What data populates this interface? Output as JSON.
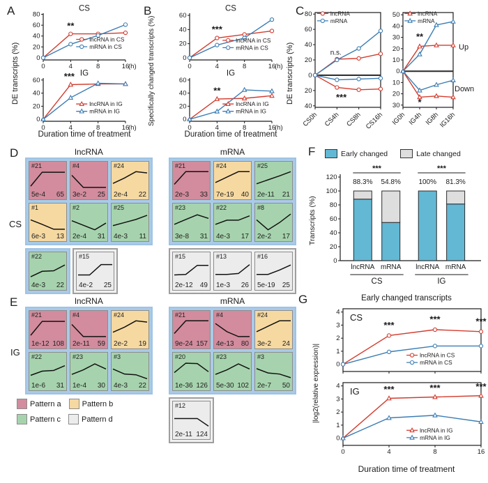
{
  "colors": {
    "red": "#d23b2e",
    "blue": "#3c7db3",
    "axis": "#1a1a1a",
    "early": "#63b8d4",
    "late": "#dedede",
    "pattern": {
      "a": "#d28c9d",
      "b": "#f6d9a1",
      "c": "#a6d3ad",
      "d": "#ececec"
    },
    "group_blue": "#a9cbe8",
    "group_gray": "#f0f0f0"
  },
  "panels": {
    "A": {
      "letter": "A",
      "ylabel": "DE transcripts (%)",
      "xlabel": "Duration time of treatment"
    },
    "B": {
      "letter": "B",
      "ylabel": "Specifically changed transcripts (%)",
      "xlabel": "Duration time of treatment"
    },
    "C": {
      "letter": "C",
      "ylabel": "DE transcripts (%)",
      "up": "Up",
      "down": "Down"
    },
    "D": {
      "letter": "D",
      "row_label": "CS",
      "headers": [
        "lncRNA",
        "mRNA"
      ],
      "lncRNA_main": [
        {
          "id": "#21",
          "p": "5e-4",
          "n": "65",
          "pattern": "a",
          "shape": [
            0.15,
            0.92,
            0.92,
            0.92
          ]
        },
        {
          "id": "#4",
          "p": "3e-2",
          "n": "25",
          "pattern": "a",
          "shape": [
            0.75,
            0.08,
            0.08,
            0.08
          ]
        },
        {
          "id": "#24",
          "p": "2e-4",
          "n": "22",
          "pattern": "b",
          "shape": [
            0.3,
            0.6,
            0.95,
            0.88
          ]
        },
        {
          "id": "#1",
          "p": "6e-3",
          "n": "13",
          "pattern": "b",
          "shape": [
            0.6,
            0.35,
            0.08,
            0.08
          ]
        },
        {
          "id": "#2",
          "p": "2e-4",
          "n": "31",
          "pattern": "c",
          "shape": [
            0.55,
            0.3,
            0.05,
            0.42
          ]
        },
        {
          "id": "#25",
          "p": "4e-3",
          "n": "11",
          "pattern": "c",
          "shape": [
            0.28,
            0.45,
            0.62,
            0.85
          ]
        }
      ],
      "lncRNA_extra_blue": [
        {
          "id": "#22",
          "p": "4e-3",
          "n": "22",
          "pattern": "c",
          "shape": [
            0.15,
            0.45,
            0.48,
            0.8
          ]
        }
      ],
      "lncRNA_extra_gray": [
        {
          "id": "#15",
          "p": "4e-2",
          "n": "25",
          "pattern": "d",
          "shape": [
            0.25,
            0.25,
            0.82,
            0.82
          ]
        }
      ],
      "mRNA_main": [
        {
          "id": "#21",
          "p": "2e-3",
          "n": "33",
          "pattern": "a",
          "shape": [
            0.25,
            0.95,
            0.95,
            0.95
          ]
        },
        {
          "id": "#24",
          "p": "7e-19",
          "n": "40",
          "pattern": "b",
          "shape": [
            0.35,
            0.65,
            0.95,
            0.95
          ]
        },
        {
          "id": "#25",
          "p": "2e-11",
          "n": "21",
          "pattern": "c",
          "shape": [
            0.28,
            0.5,
            0.72,
            0.95
          ]
        },
        {
          "id": "#23",
          "p": "3e-8",
          "n": "31",
          "pattern": "c",
          "shape": [
            0.35,
            0.62,
            0.88,
            0.68
          ]
        },
        {
          "id": "#22",
          "p": "4e-3",
          "n": "17",
          "pattern": "c",
          "shape": [
            0.35,
            0.58,
            0.58,
            0.82
          ]
        },
        {
          "id": "#8",
          "p": "2e-2",
          "n": "17",
          "pattern": "c",
          "shape": [
            0.6,
            0.05,
            0.45,
            0.92
          ]
        }
      ],
      "mRNA_extra_gray": [
        {
          "id": "#15",
          "p": "2e-12",
          "n": "49",
          "pattern": "d",
          "shape": [
            0.25,
            0.28,
            0.78,
            0.78
          ]
        },
        {
          "id": "#13",
          "p": "1e-3",
          "n": "26",
          "pattern": "d",
          "shape": [
            0.28,
            0.28,
            0.33,
            0.82
          ]
        },
        {
          "id": "#16",
          "p": "5e-19",
          "n": "25",
          "pattern": "d",
          "shape": [
            0.28,
            0.28,
            0.52,
            0.8
          ]
        }
      ]
    },
    "E": {
      "letter": "E",
      "row_label": "IG",
      "headers": [
        "lncRNA",
        "mRNA"
      ],
      "lncRNA_main": [
        {
          "id": "#21",
          "p": "1e-12",
          "n": "108",
          "pattern": "a",
          "shape": [
            0.15,
            0.92,
            0.92,
            0.92
          ]
        },
        {
          "id": "#4",
          "p": "2e-11",
          "n": "59",
          "pattern": "a",
          "shape": [
            0.75,
            0.08,
            0.08,
            0.08
          ]
        },
        {
          "id": "#24",
          "p": "2e-2",
          "n": "19",
          "pattern": "b",
          "shape": [
            0.32,
            0.6,
            0.95,
            0.88
          ]
        },
        {
          "id": "#22",
          "p": "1e-6",
          "n": "31",
          "pattern": "c",
          "shape": [
            0.25,
            0.48,
            0.52,
            0.78
          ]
        },
        {
          "id": "#23",
          "p": "1e-4",
          "n": "30",
          "pattern": "c",
          "shape": [
            0.3,
            0.55,
            0.88,
            0.6
          ]
        },
        {
          "id": "#3",
          "p": "4e-3",
          "n": "22",
          "pattern": "c",
          "shape": [
            0.6,
            0.32,
            0.28,
            0.06
          ]
        }
      ],
      "mRNA_main": [
        {
          "id": "#21",
          "p": "9e-24",
          "n": "157",
          "pattern": "a",
          "shape": [
            0.25,
            0.95,
            0.95,
            0.95
          ]
        },
        {
          "id": "#4",
          "p": "4e-13",
          "n": "80",
          "pattern": "a",
          "shape": [
            0.8,
            0.35,
            0.08,
            0.08
          ]
        },
        {
          "id": "#24",
          "p": "3e-2",
          "n": "24",
          "pattern": "b",
          "shape": [
            0.35,
            0.65,
            0.95,
            0.95
          ]
        },
        {
          "id": "#20",
          "p": "1e-36",
          "n": "126",
          "pattern": "c",
          "shape": [
            0.4,
            0.92,
            0.9,
            0.45
          ]
        },
        {
          "id": "#23",
          "p": "5e-30",
          "n": "102",
          "pattern": "c",
          "shape": [
            0.3,
            0.55,
            0.88,
            0.6
          ]
        },
        {
          "id": "#3",
          "p": "2e-7",
          "n": "50",
          "pattern": "c",
          "shape": [
            0.62,
            0.38,
            0.32,
            0.12
          ]
        }
      ],
      "mRNA_extra_gray": [
        {
          "id": "#12",
          "p": "2e-11",
          "n": "124",
          "pattern": "d",
          "shape": [
            0.56,
            0.56,
            0.56,
            0.14
          ]
        }
      ],
      "pattern_legend": [
        {
          "label": "Pattern a",
          "key": "a"
        },
        {
          "label": "Pattern b",
          "key": "b"
        },
        {
          "label": "Pattern c",
          "key": "c"
        },
        {
          "label": "Pattern d",
          "key": "d"
        }
      ]
    },
    "F": {
      "letter": "F",
      "ylabel": "Transcripts (%)",
      "legend": [
        {
          "label": "Early changed",
          "key": "early"
        },
        {
          "label": "Late changed",
          "key": "late"
        }
      ]
    },
    "G": {
      "letter": "G",
      "title": "Early changed transcripts",
      "ylabel": "|log2(relative expression)|",
      "xlabel": "Duration time of treatment"
    }
  },
  "chart_data": [
    {
      "id": "A-CS",
      "type": "line",
      "title": "CS",
      "marker": "circle",
      "x_labels": [
        "0",
        "4",
        "8",
        "16"
      ],
      "x_unit": "(h)",
      "ylim": [
        -4,
        82
      ],
      "yticks": [
        0,
        20,
        40,
        60,
        80
      ],
      "series": [
        {
          "name": "lncRNA in CS",
          "color": "#d23b2e",
          "values": [
            0,
            44,
            44,
            46
          ]
        },
        {
          "name": "mRNA in CS",
          "color": "#3c7db3",
          "values": [
            0,
            25,
            41,
            61
          ]
        }
      ],
      "annotations": [
        {
          "text": "**",
          "xi": 1,
          "y": 53
        }
      ],
      "legend": {
        "fx": 0.4,
        "fy": 0.56
      }
    },
    {
      "id": "A-IG",
      "type": "line",
      "title": "IG",
      "marker": "triangle",
      "x_labels": [
        "0",
        "4",
        "8",
        "16"
      ],
      "x_unit": "(h)",
      "ylim": [
        -3,
        63
      ],
      "yticks": [
        0,
        20,
        40,
        60
      ],
      "series": [
        {
          "name": "lncRNA in IG",
          "color": "#d23b2e",
          "values": [
            0,
            53,
            54,
            54
          ]
        },
        {
          "name": "mRNA in IG",
          "color": "#3c7db3",
          "values": [
            0,
            33,
            55,
            54
          ]
        }
      ],
      "annotations": [
        {
          "text": "***",
          "xi": 0.95,
          "y": 61
        }
      ],
      "legend": {
        "fx": 0.4,
        "fy": 0.6
      }
    },
    {
      "id": "B-CS",
      "type": "line",
      "title": "CS",
      "marker": "circle",
      "x_labels": [
        "0",
        "4",
        "8",
        "16"
      ],
      "x_unit": "(h)",
      "ylim": [
        -3,
        63
      ],
      "yticks": [
        0,
        20,
        40,
        60
      ],
      "series": [
        {
          "name": "lncRNA in CS",
          "color": "#d23b2e",
          "values": [
            0,
            28,
            33,
            38
          ]
        },
        {
          "name": "mRNA in CS",
          "color": "#3c7db3",
          "values": [
            0,
            18,
            28,
            54
          ]
        }
      ],
      "annotations": [
        {
          "text": "***",
          "xi": 1,
          "y": 36
        }
      ],
      "legend": {
        "fx": 0.4,
        "fy": 0.58
      }
    },
    {
      "id": "B-IG",
      "type": "line",
      "title": "IG",
      "marker": "triangle",
      "x_labels": [
        "0",
        "4",
        "8",
        "16"
      ],
      "x_unit": "(h)",
      "ylim": [
        -3,
        63
      ],
      "yticks": [
        0,
        20,
        40,
        60
      ],
      "series": [
        {
          "name": "lncRNA in IG",
          "color": "#d23b2e",
          "values": [
            0,
            31,
            32,
            36
          ]
        },
        {
          "name": "mRNA in IG",
          "color": "#3c7db3",
          "values": [
            0,
            12,
            45,
            43
          ]
        }
      ],
      "annotations": [
        {
          "text": "**",
          "xi": 1,
          "y": 39
        }
      ],
      "legend": {
        "fx": 0.4,
        "fy": 0.6
      }
    },
    {
      "id": "C-CS",
      "type": "line",
      "marker": "circle",
      "box": true,
      "zeroline": true,
      "rotate_x": true,
      "x_labels": [
        "CS0h",
        "CS4h",
        "CS8h",
        "CS16h"
      ],
      "ylim": [
        -42,
        82
      ],
      "yticks": [
        80,
        60,
        40,
        20,
        0,
        -20,
        -40
      ],
      "series": [
        {
          "name": "lncRNA",
          "color": "#d23b2e",
          "values": [
            0,
            21,
            22,
            28
          ]
        },
        {
          "name": "mRNA",
          "color": "#3c7db3",
          "values": [
            0,
            20,
            35,
            58
          ]
        },
        {
          "name": "",
          "color": "#d23b2e",
          "values": [
            0,
            -16,
            -19,
            -18
          ]
        },
        {
          "name": "",
          "color": "#3c7db3",
          "values": [
            0,
            -6,
            -5,
            -4
          ]
        }
      ],
      "annotations": [
        {
          "text": "n.s.",
          "xi": 0.95,
          "y": 27,
          "fs": 10,
          "bold": false
        },
        {
          "text": "***",
          "xi": 1.2,
          "y": -33
        }
      ],
      "legend": {
        "fx": 0.03,
        "fy": 0.01,
        "items": [
          0,
          1
        ]
      }
    },
    {
      "id": "C-IG",
      "type": "line",
      "marker": "triangle",
      "box": true,
      "zeroline": true,
      "rotate_x": true,
      "x_labels": [
        "IG0h",
        "IG4h",
        "IG8h",
        "IG16h"
      ],
      "ylim": [
        -32,
        52
      ],
      "yticks": [
        50,
        40,
        30,
        20,
        10,
        0,
        -10,
        -20,
        -30
      ],
      "series": [
        {
          "name": "lncRNA",
          "color": "#d23b2e",
          "values": [
            0,
            22,
            23,
            23
          ]
        },
        {
          "name": "mRNA",
          "color": "#3c7db3",
          "values": [
            0,
            15,
            41,
            44
          ]
        },
        {
          "name": "",
          "color": "#d23b2e",
          "values": [
            0,
            -23,
            -22,
            -23
          ]
        },
        {
          "name": "",
          "color": "#3c7db3",
          "values": [
            0,
            -17,
            -12,
            -8
          ]
        }
      ],
      "annotations": [
        {
          "text": "**",
          "xi": 1,
          "y": 28
        },
        {
          "text": "*",
          "xi": 1,
          "y": -30
        }
      ],
      "legend": {
        "fx": 0.03,
        "fy": 0.01,
        "items": [
          0,
          1
        ]
      }
    },
    {
      "id": "F",
      "type": "stacked-bar",
      "categories": [
        "lncRNA",
        "mRNA",
        "lncRNA",
        "mRNA"
      ],
      "groups": [
        {
          "label": "CS"
        },
        {
          "label": "IG"
        }
      ],
      "early_values": [
        88.3,
        54.8,
        100,
        81.3
      ],
      "late_values": [
        11.7,
        45.2,
        0,
        18.7
      ],
      "value_labels": [
        "88.3%",
        "54.8%",
        "100%",
        "81.3%"
      ],
      "sig": [
        "***",
        "***"
      ],
      "yticks": [
        0,
        20,
        40,
        60,
        80,
        100,
        120
      ]
    },
    {
      "id": "G-CS",
      "type": "line",
      "marker": "circle",
      "box": true,
      "corner": "CS",
      "ylim": [
        -0.55,
        4.25
      ],
      "yticks": [
        0,
        1,
        2,
        3,
        4
      ],
      "series": [
        {
          "name": "lncRNA in CS",
          "color": "#d23b2e",
          "values": [
            0,
            2.2,
            2.65,
            2.5
          ]
        },
        {
          "name": "mRNA in CS",
          "color": "#3c7db3",
          "values": [
            0,
            0.95,
            1.4,
            1.4
          ]
        }
      ],
      "annotations": [
        {
          "text": "***",
          "xi": 1,
          "y": 2.75
        },
        {
          "text": "***",
          "xi": 2,
          "y": 3.2
        },
        {
          "text": "***",
          "xi": 3,
          "y": 3.05
        }
      ],
      "legend": {
        "fx": 0.46,
        "fy": 0.74
      }
    },
    {
      "id": "G-IG",
      "type": "line",
      "marker": "triangle",
      "box": true,
      "corner": "IG",
      "x_labels": [
        "0",
        "4",
        "8",
        "16"
      ],
      "ylim": [
        -0.55,
        4.25
      ],
      "yticks": [
        0,
        1,
        2,
        3,
        4
      ],
      "series": [
        {
          "name": "lncRNA in IG",
          "color": "#d23b2e",
          "values": [
            0,
            3.05,
            3.15,
            3.25
          ]
        },
        {
          "name": "mRNA in IG",
          "color": "#3c7db3",
          "values": [
            0,
            1.55,
            1.75,
            1.25
          ]
        }
      ],
      "annotations": [
        {
          "text": "***",
          "xi": 1,
          "y": 3.5
        },
        {
          "text": "***",
          "xi": 2,
          "y": 3.6
        },
        {
          "text": "***",
          "xi": 3,
          "y": 3.72
        }
      ],
      "legend": {
        "fx": 0.46,
        "fy": 0.76
      }
    }
  ]
}
